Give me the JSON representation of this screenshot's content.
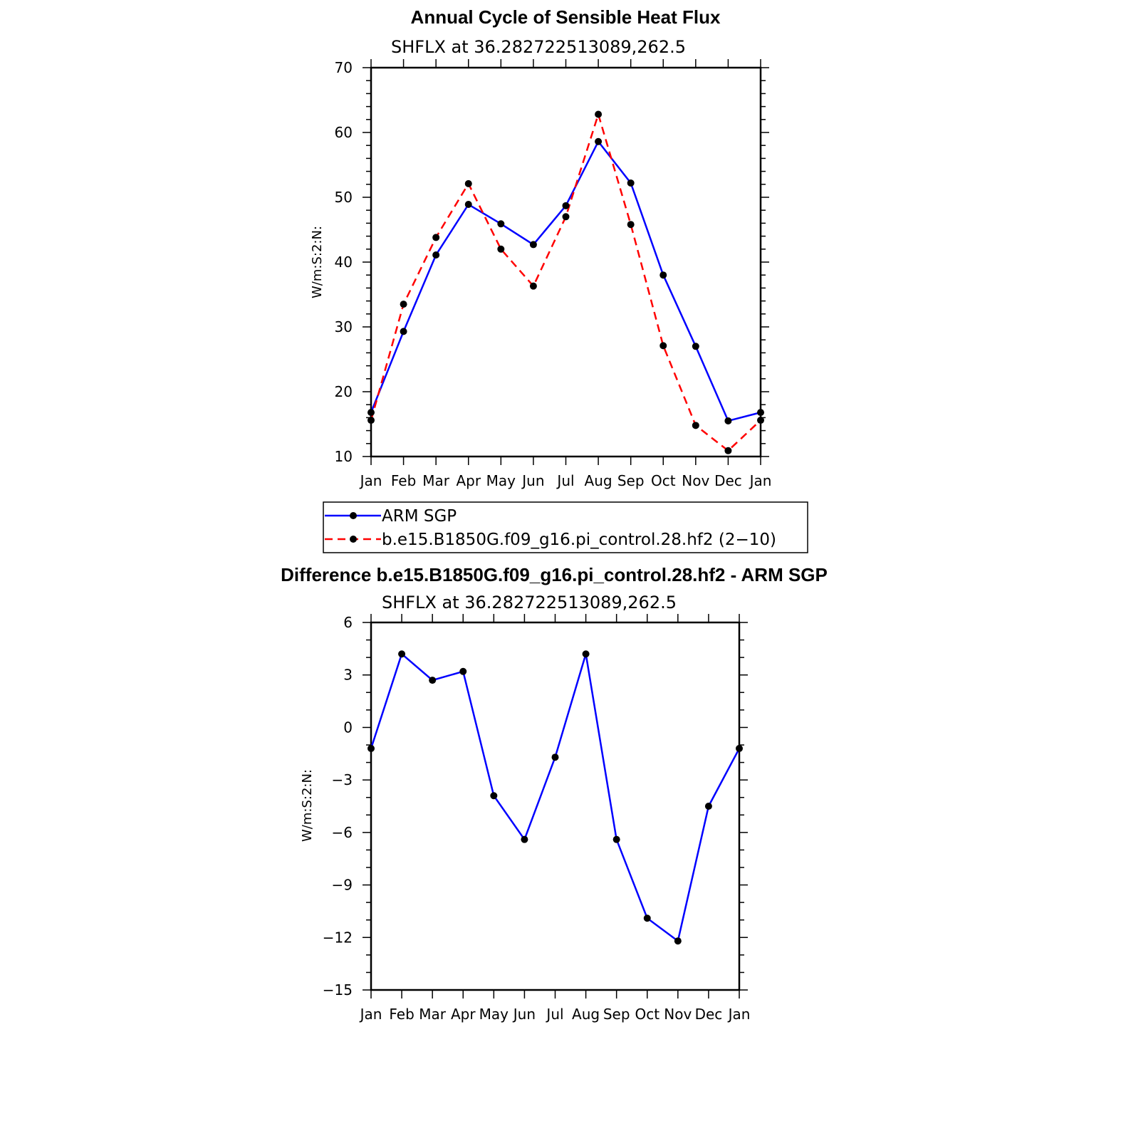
{
  "chart_data": [
    {
      "type": "line",
      "title": "Annual Cycle of Sensible Heat Flux",
      "subtitle": "SHFLX at 36.282722513089,262.5",
      "ylabel": "W/m:S:2:N:",
      "xlabel": "",
      "categories": [
        "Jan",
        "Feb",
        "Mar",
        "Apr",
        "May",
        "Jun",
        "Jul",
        "Aug",
        "Sep",
        "Oct",
        "Nov",
        "Dec",
        "Jan"
      ],
      "ylim": [
        10,
        70
      ],
      "yticks": [
        10,
        20,
        30,
        40,
        50,
        60,
        70
      ],
      "series": [
        {
          "name": "ARM SGP",
          "color": "#0000ff",
          "dash": "solid",
          "values": [
            16.8,
            29.3,
            41.1,
            48.9,
            45.9,
            42.7,
            48.7,
            58.6,
            52.2,
            38.0,
            27.0,
            15.5,
            16.8
          ]
        },
        {
          "name": "b.e15.B1850G.f09_g16.pi_control.28.hf2 (2−10)",
          "color": "#ff0000",
          "dash": "dashed",
          "values": [
            15.6,
            33.5,
            43.8,
            52.1,
            42.0,
            36.3,
            47.0,
            62.8,
            45.8,
            27.1,
            14.8,
            10.9,
            15.6
          ]
        }
      ],
      "legend": "below"
    },
    {
      "type": "line",
      "title": "Difference b.e15.B1850G.f09_g16.pi_control.28.hf2 - ARM SGP",
      "subtitle": "SHFLX at 36.282722513089,262.5",
      "ylabel": "W/m:S:2:N:",
      "xlabel": "",
      "categories": [
        "Jan",
        "Feb",
        "Mar",
        "Apr",
        "May",
        "Jun",
        "Jul",
        "Aug",
        "Sep",
        "Oct",
        "Nov",
        "Dec",
        "Jan"
      ],
      "ylim": [
        -15,
        6
      ],
      "yticks": [
        -15,
        -12,
        -9,
        -6,
        -3,
        0,
        3,
        6
      ],
      "yticklabels": [
        "−15",
        "−12",
        "−9",
        "−6",
        "−3",
        "0",
        "3",
        "6"
      ],
      "series": [
        {
          "color": "#0000ff",
          "dash": "solid",
          "values": [
            -1.2,
            4.2,
            2.7,
            3.2,
            -3.9,
            -6.4,
            -1.7,
            4.2,
            -6.4,
            -10.9,
            -12.2,
            -4.5,
            -1.2
          ]
        }
      ]
    }
  ]
}
